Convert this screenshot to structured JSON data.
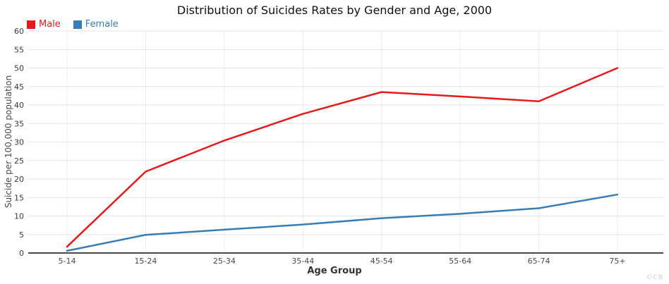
{
  "watermark": "©CB",
  "chart_data": {
    "type": "line",
    "title": "Distribution of Suicides Rates by Gender and Age, 2000",
    "xlabel": "Age Group",
    "ylabel": "Suicide per 100,000 population",
    "categories": [
      "5-14",
      "15-24",
      "25-34",
      "35-44",
      "45-54",
      "55-64",
      "65-74",
      "75+"
    ],
    "series": [
      {
        "name": "Male",
        "color": "#e41a1c",
        "values": [
          1.7,
          22.0,
          30.4,
          37.6,
          43.5,
          42.3,
          41.0,
          50.0
        ]
      },
      {
        "name": "Female",
        "color": "#377eb8",
        "values": [
          0.6,
          4.9,
          6.3,
          7.7,
          9.4,
          10.6,
          12.1,
          15.8
        ]
      }
    ],
    "ylim": [
      0,
      60
    ],
    "yticks": [
      0,
      5,
      10,
      15,
      20,
      25,
      30,
      35,
      40,
      45,
      50,
      55,
      60
    ],
    "grid": true,
    "legend_position": "top-left",
    "colors": {
      "grid": "#e3e3e3",
      "grid_vertical": "#ededed",
      "axis": "#2d2d2d",
      "tick_label": "#4a4a4a",
      "title": "#111111",
      "watermark": "#cccccc"
    }
  }
}
